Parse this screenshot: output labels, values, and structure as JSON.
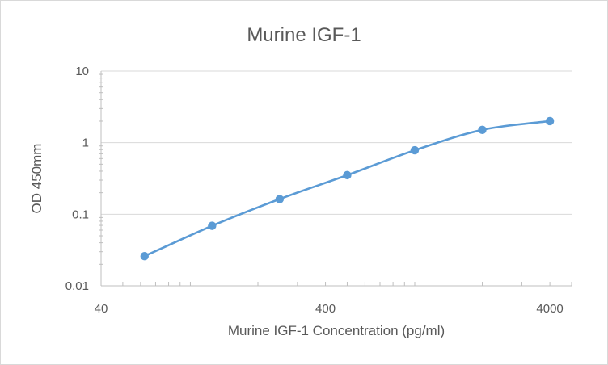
{
  "chart_data": {
    "type": "scatter",
    "title": "Murine IGF-1",
    "xlabel": "Murine IGF-1 Concentration (pg/ml)",
    "ylabel": "OD 450mm",
    "x_scale": "log",
    "y_scale": "log",
    "xlim": [
      40,
      5000
    ],
    "ylim": [
      0.01,
      10
    ],
    "x_ticks": [
      {
        "value": 40,
        "label": "40"
      },
      {
        "value": 400,
        "label": "400"
      },
      {
        "value": 4000,
        "label": "4000"
      }
    ],
    "y_ticks": [
      {
        "value": 0.01,
        "label": "0.01"
      },
      {
        "value": 0.1,
        "label": "0.1"
      },
      {
        "value": 1,
        "label": "1"
      },
      {
        "value": 10,
        "label": "10"
      }
    ],
    "grid": "horizontal",
    "legend": "none",
    "color": "#5b9bd5",
    "series": [
      {
        "x": [
          62.5,
          125,
          250,
          500,
          1000,
          2000,
          4000
        ],
        "y": [
          0.026,
          0.069,
          0.163,
          0.352,
          0.784,
          1.51,
          2.0
        ]
      }
    ]
  }
}
